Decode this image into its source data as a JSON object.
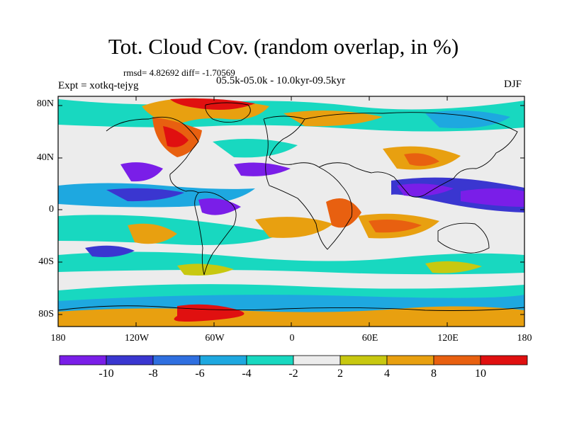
{
  "title": "Tot. Cloud Cov. (random overlap, in %)",
  "stats": "rmsd= 4.82692 diff= -1.70569",
  "experiment": "Expt = xotkq-tejyg",
  "period": "05.5k-05.0k - 10.0kyr-09.5kyr",
  "season": "DJF",
  "map": {
    "lat_ticks": [
      "80N",
      "40N",
      "0",
      "40S",
      "80S"
    ],
    "lon_ticks": [
      "180",
      "120W",
      "60W",
      "0",
      "60E",
      "120E",
      "180"
    ]
  },
  "colorbar": {
    "labels": [
      "-10",
      "-8",
      "-6",
      "-4",
      "-2",
      "2",
      "4",
      "8",
      "10"
    ],
    "colors": [
      "#7a1ee8",
      "#3a36d0",
      "#2f6fe0",
      "#1ea8e0",
      "#18d8c0",
      "#ececec",
      "#c8c810",
      "#e8a010",
      "#e86010",
      "#e01010"
    ]
  }
}
